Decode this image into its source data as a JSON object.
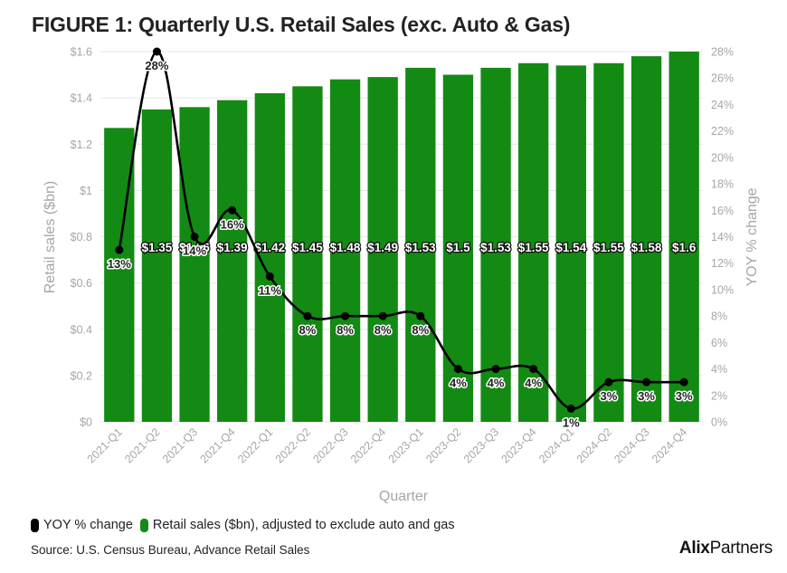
{
  "title": "FIGURE 1: Quarterly U.S. Retail Sales (exc. Auto & Gas)",
  "source": "Source: U.S. Census Bureau, Advance Retail Sales",
  "brand": {
    "bold": "Alix",
    "regular": "Partners"
  },
  "colors": {
    "bar": "#138a13",
    "line": "#000000",
    "axis_text": "#a6a6a6",
    "grid": "#e6e6e6"
  },
  "chart_data": {
    "type": "bar",
    "xlabel": "Quarter",
    "ylabel": "Retail sales ($bn)",
    "y2label": "YOY % change",
    "ylim": [
      0,
      1.6
    ],
    "y2lim": [
      0,
      28
    ],
    "y_ticks": [
      "$0",
      "$0.2",
      "$0.4",
      "$0.6",
      "$0.8",
      "$1",
      "$1.2",
      "$1.4",
      "$1.6"
    ],
    "y2_ticks": [
      "0%",
      "2%",
      "4%",
      "6%",
      "8%",
      "10%",
      "12%",
      "14%",
      "16%",
      "18%",
      "20%",
      "22%",
      "24%",
      "26%",
      "28%"
    ],
    "grid": true,
    "legend_position": "bottom-left",
    "categories": [
      "2021-Q1",
      "2021-Q2",
      "2021-Q3",
      "2021-Q4",
      "2022-Q1",
      "2022-Q2",
      "2022-Q3",
      "2022-Q4",
      "2023-Q1",
      "2023-Q2",
      "2023-Q3",
      "2023-Q4",
      "2024-Q1",
      "2024-Q2",
      "2024-Q3",
      "2024-Q4"
    ],
    "series": [
      {
        "name": "Retail sales ($bn), adjusted to exclude auto and gas",
        "type": "bar",
        "axis": "left",
        "values": [
          1.27,
          1.35,
          1.36,
          1.39,
          1.42,
          1.45,
          1.48,
          1.49,
          1.53,
          1.5,
          1.53,
          1.55,
          1.54,
          1.55,
          1.58,
          1.6
        ],
        "labels": [
          "",
          "$1.35",
          "$1.36",
          "$1.39",
          "$1.42",
          "$1.45",
          "$1.48",
          "$1.49",
          "$1.53",
          "$1.5",
          "$1.53",
          "$1.55",
          "$1.54",
          "$1.55",
          "$1.58",
          "$1.6"
        ]
      },
      {
        "name": "YOY % change",
        "type": "line",
        "axis": "right",
        "values": [
          13,
          28,
          14,
          16,
          11,
          8,
          8,
          8,
          8,
          4,
          4,
          4,
          1,
          3,
          3,
          3
        ],
        "labels": [
          "13%",
          "28%",
          "14%",
          "16%",
          "11%",
          "8%",
          "8%",
          "8%",
          "8%",
          "4%",
          "4%",
          "4%",
          "1%",
          "3%",
          "3%",
          "3%"
        ]
      }
    ]
  }
}
